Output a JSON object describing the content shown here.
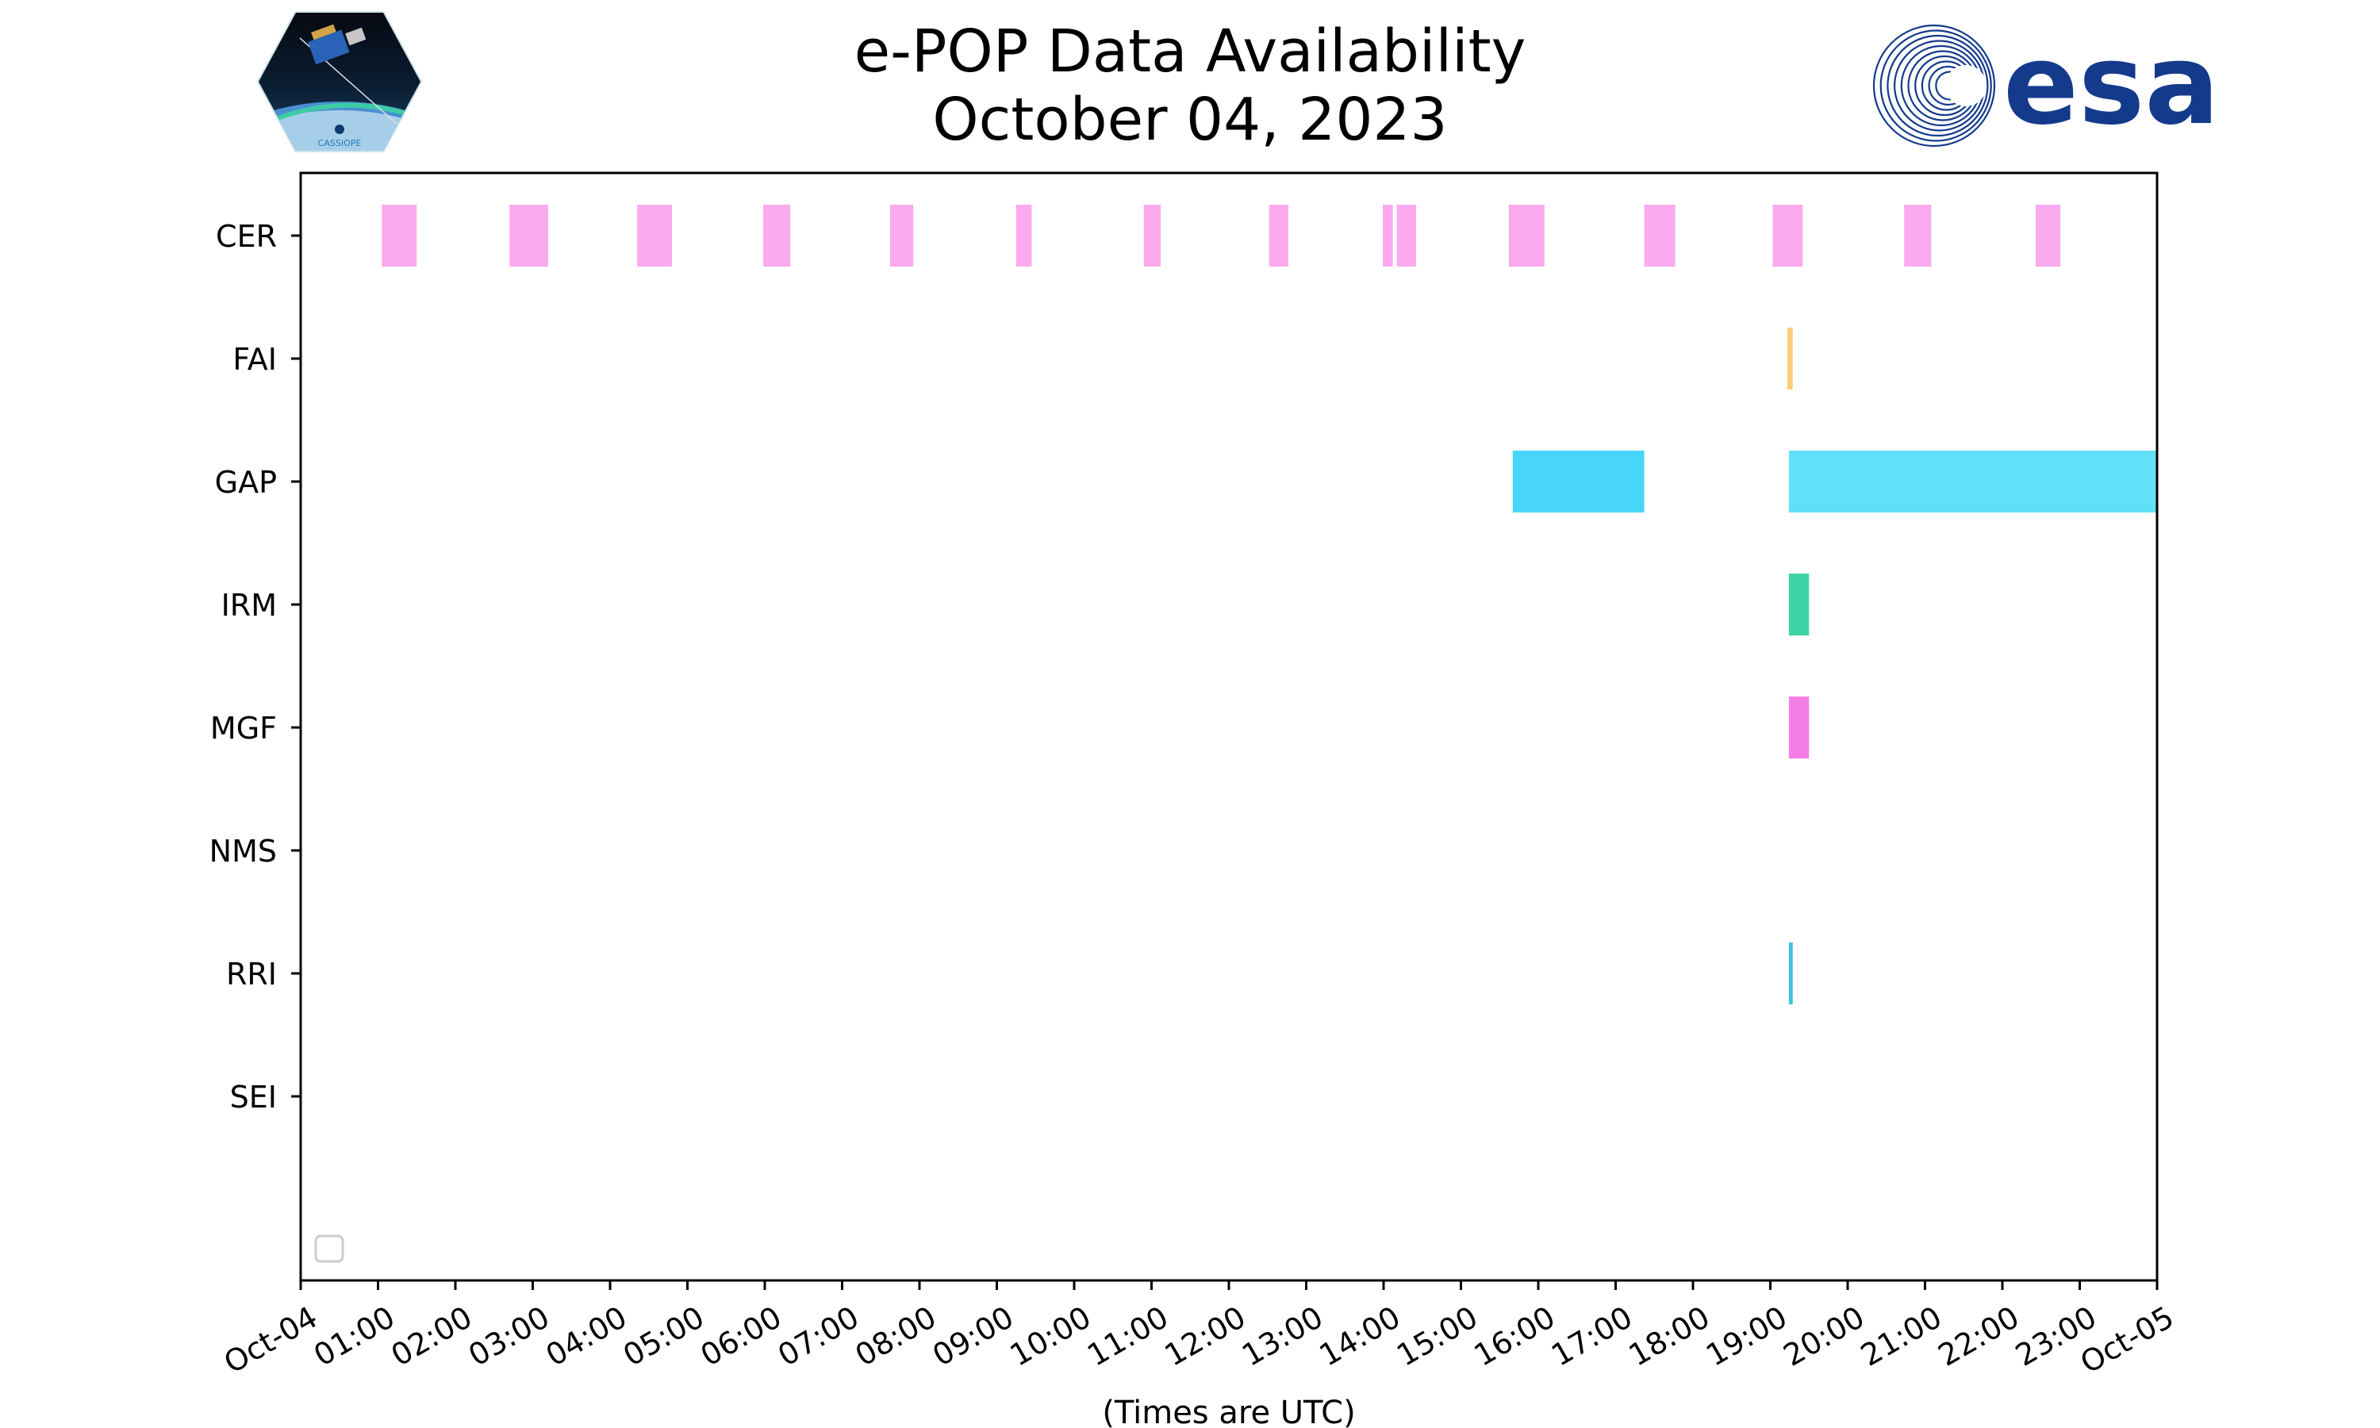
{
  "chart_data": {
    "type": "timeline",
    "title": "e-POP Data Availability",
    "subtitle": "October 04, 2023",
    "xlabel": "(Times are UTC)",
    "xlim_hours": [
      0,
      24
    ],
    "x_tick_labels": [
      "Oct-04",
      "01:00",
      "02:00",
      "03:00",
      "04:00",
      "05:00",
      "06:00",
      "07:00",
      "08:00",
      "09:00",
      "10:00",
      "11:00",
      "12:00",
      "13:00",
      "14:00",
      "15:00",
      "16:00",
      "17:00",
      "18:00",
      "19:00",
      "20:00",
      "21:00",
      "22:00",
      "23:00",
      "Oct-05"
    ],
    "instruments": [
      "CER",
      "FAI",
      "GAP",
      "IRM",
      "MGF",
      "NMS",
      "RRI",
      "SEI"
    ],
    "series": [
      {
        "name": "CER",
        "color": "#fcaaf0",
        "intervals": [
          [
            1.05,
            1.5
          ],
          [
            2.7,
            3.2
          ],
          [
            4.35,
            4.8
          ],
          [
            5.98,
            6.33
          ],
          [
            7.62,
            7.92
          ],
          [
            9.25,
            9.45
          ],
          [
            10.9,
            11.12
          ],
          [
            12.52,
            12.77
          ],
          [
            13.99,
            14.12
          ],
          [
            14.17,
            14.42
          ],
          [
            15.62,
            16.08
          ],
          [
            17.37,
            17.77
          ],
          [
            19.03,
            19.42
          ],
          [
            20.73,
            21.08
          ],
          [
            22.43,
            22.75
          ]
        ]
      },
      {
        "name": "FAI",
        "color": "#fbcc7a",
        "intervals": [
          [
            19.22,
            19.29
          ]
        ]
      },
      {
        "name": "GAP",
        "color": "#47d6f8",
        "intervals": [
          [
            15.67,
            17.37
          ]
        ],
        "alt_color": "#62e0f8",
        "alt_intervals": [
          [
            19.24,
            24.0
          ]
        ]
      },
      {
        "name": "IRM",
        "color": "#3ed3a4",
        "intervals": [
          [
            19.24,
            19.5
          ]
        ]
      },
      {
        "name": "MGF",
        "color": "#f47ee4",
        "intervals": [
          [
            19.24,
            19.5
          ]
        ]
      },
      {
        "name": "NMS",
        "color": "#cccccc",
        "intervals": []
      },
      {
        "name": "RRI",
        "color": "#3ec4e0",
        "intervals": [
          [
            19.24,
            19.29
          ]
        ]
      },
      {
        "name": "SEI",
        "color": "#cccccc",
        "intervals": []
      }
    ]
  },
  "logos": {
    "left": {
      "name": "CASSIOPE mission patch",
      "text": "CASSIOPE"
    },
    "right": {
      "name": "esa",
      "text": "esa",
      "color": "#143a8c"
    }
  },
  "legend": {
    "placement": "lower-left",
    "entries": []
  }
}
